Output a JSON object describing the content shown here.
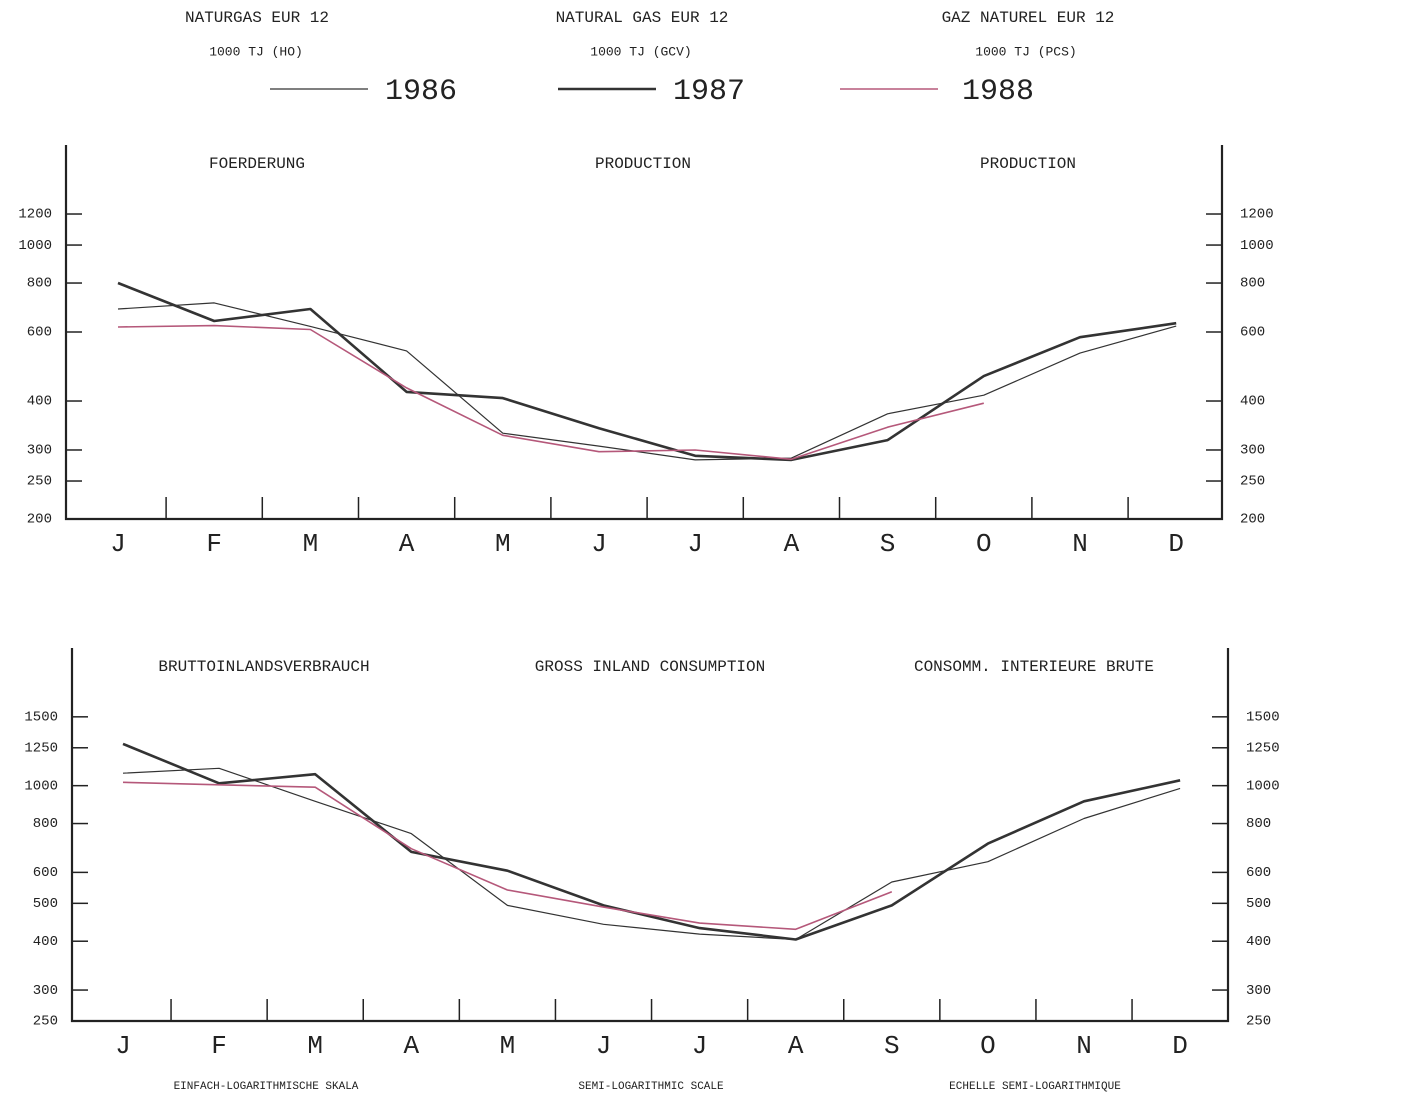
{
  "header": {
    "titles": [
      "NATURGAS EUR 12",
      "NATURAL GAS EUR 12",
      "GAZ NATUREL EUR 12"
    ],
    "units": [
      "1000 TJ (HO)",
      "1000 TJ (GCV)",
      "1000 TJ (PCS)"
    ]
  },
  "chart_data": [
    {
      "type": "line",
      "titles": [
        "FOERDERUNG",
        "PRODUCTION",
        "PRODUCTION"
      ],
      "log_scale": true,
      "categories": [
        "J",
        "F",
        "M",
        "A",
        "M",
        "J",
        "J",
        "A",
        "S",
        "O",
        "N",
        "D"
      ],
      "ylim": [
        200,
        1800
      ],
      "yticks": [
        200,
        250,
        300,
        400,
        600,
        800,
        1000,
        1200
      ],
      "series": [
        {
          "name": "1986",
          "color": "#333333",
          "width": 1.2,
          "values": [
            687,
            712,
            620,
            537,
            331,
            307,
            283,
            286,
            371,
            414,
            530,
            621
          ]
        },
        {
          "name": "1987",
          "color": "#333333",
          "width": 2.6,
          "values": [
            800,
            640,
            687,
            422,
            407,
            341,
            290,
            283,
            318,
            463,
            582,
            632
          ]
        },
        {
          "name": "1988",
          "color": "#b5587a",
          "width": 1.6,
          "values": [
            618,
            623,
            609,
            432,
            327,
            297,
            300,
            284,
            343,
            395,
            null,
            null
          ]
        }
      ]
    },
    {
      "type": "line",
      "titles": [
        "BRUTTOINLANDSVERBRAUCH",
        "GROSS INLAND CONSUMPTION",
        "CONSOMM. INTERIEURE BRUTE"
      ],
      "log_scale": true,
      "categories": [
        "J",
        "F",
        "M",
        "A",
        "M",
        "J",
        "J",
        "A",
        "S",
        "O",
        "N",
        "D"
      ],
      "ylim": [
        250,
        2250
      ],
      "yticks": [
        250,
        300,
        400,
        500,
        600,
        800,
        1000,
        1250,
        1500
      ],
      "series": [
        {
          "name": "1986",
          "color": "#333333",
          "width": 1.2,
          "values": [
            1076,
            1108,
            912,
            754,
            494,
            442,
            417,
            404,
            567,
            639,
            824,
            984
          ]
        },
        {
          "name": "1987",
          "color": "#333333",
          "width": 2.6,
          "values": [
            1279,
            1014,
            1070,
            677,
            606,
            494,
            432,
            404,
            494,
            711,
            912,
            1032
          ]
        },
        {
          "name": "1988",
          "color": "#b5587a",
          "width": 1.6,
          "values": [
            1020,
            1005,
            991,
            690,
            541,
            489,
            445,
            429,
            535,
            null,
            null,
            null
          ]
        }
      ]
    }
  ],
  "footer": [
    "EINFACH-LOGARITHMISCHE SKALA",
    "SEMI-LOGARITHMIC SCALE",
    "ECHELLE SEMI-LOGARITHMIQUE"
  ]
}
